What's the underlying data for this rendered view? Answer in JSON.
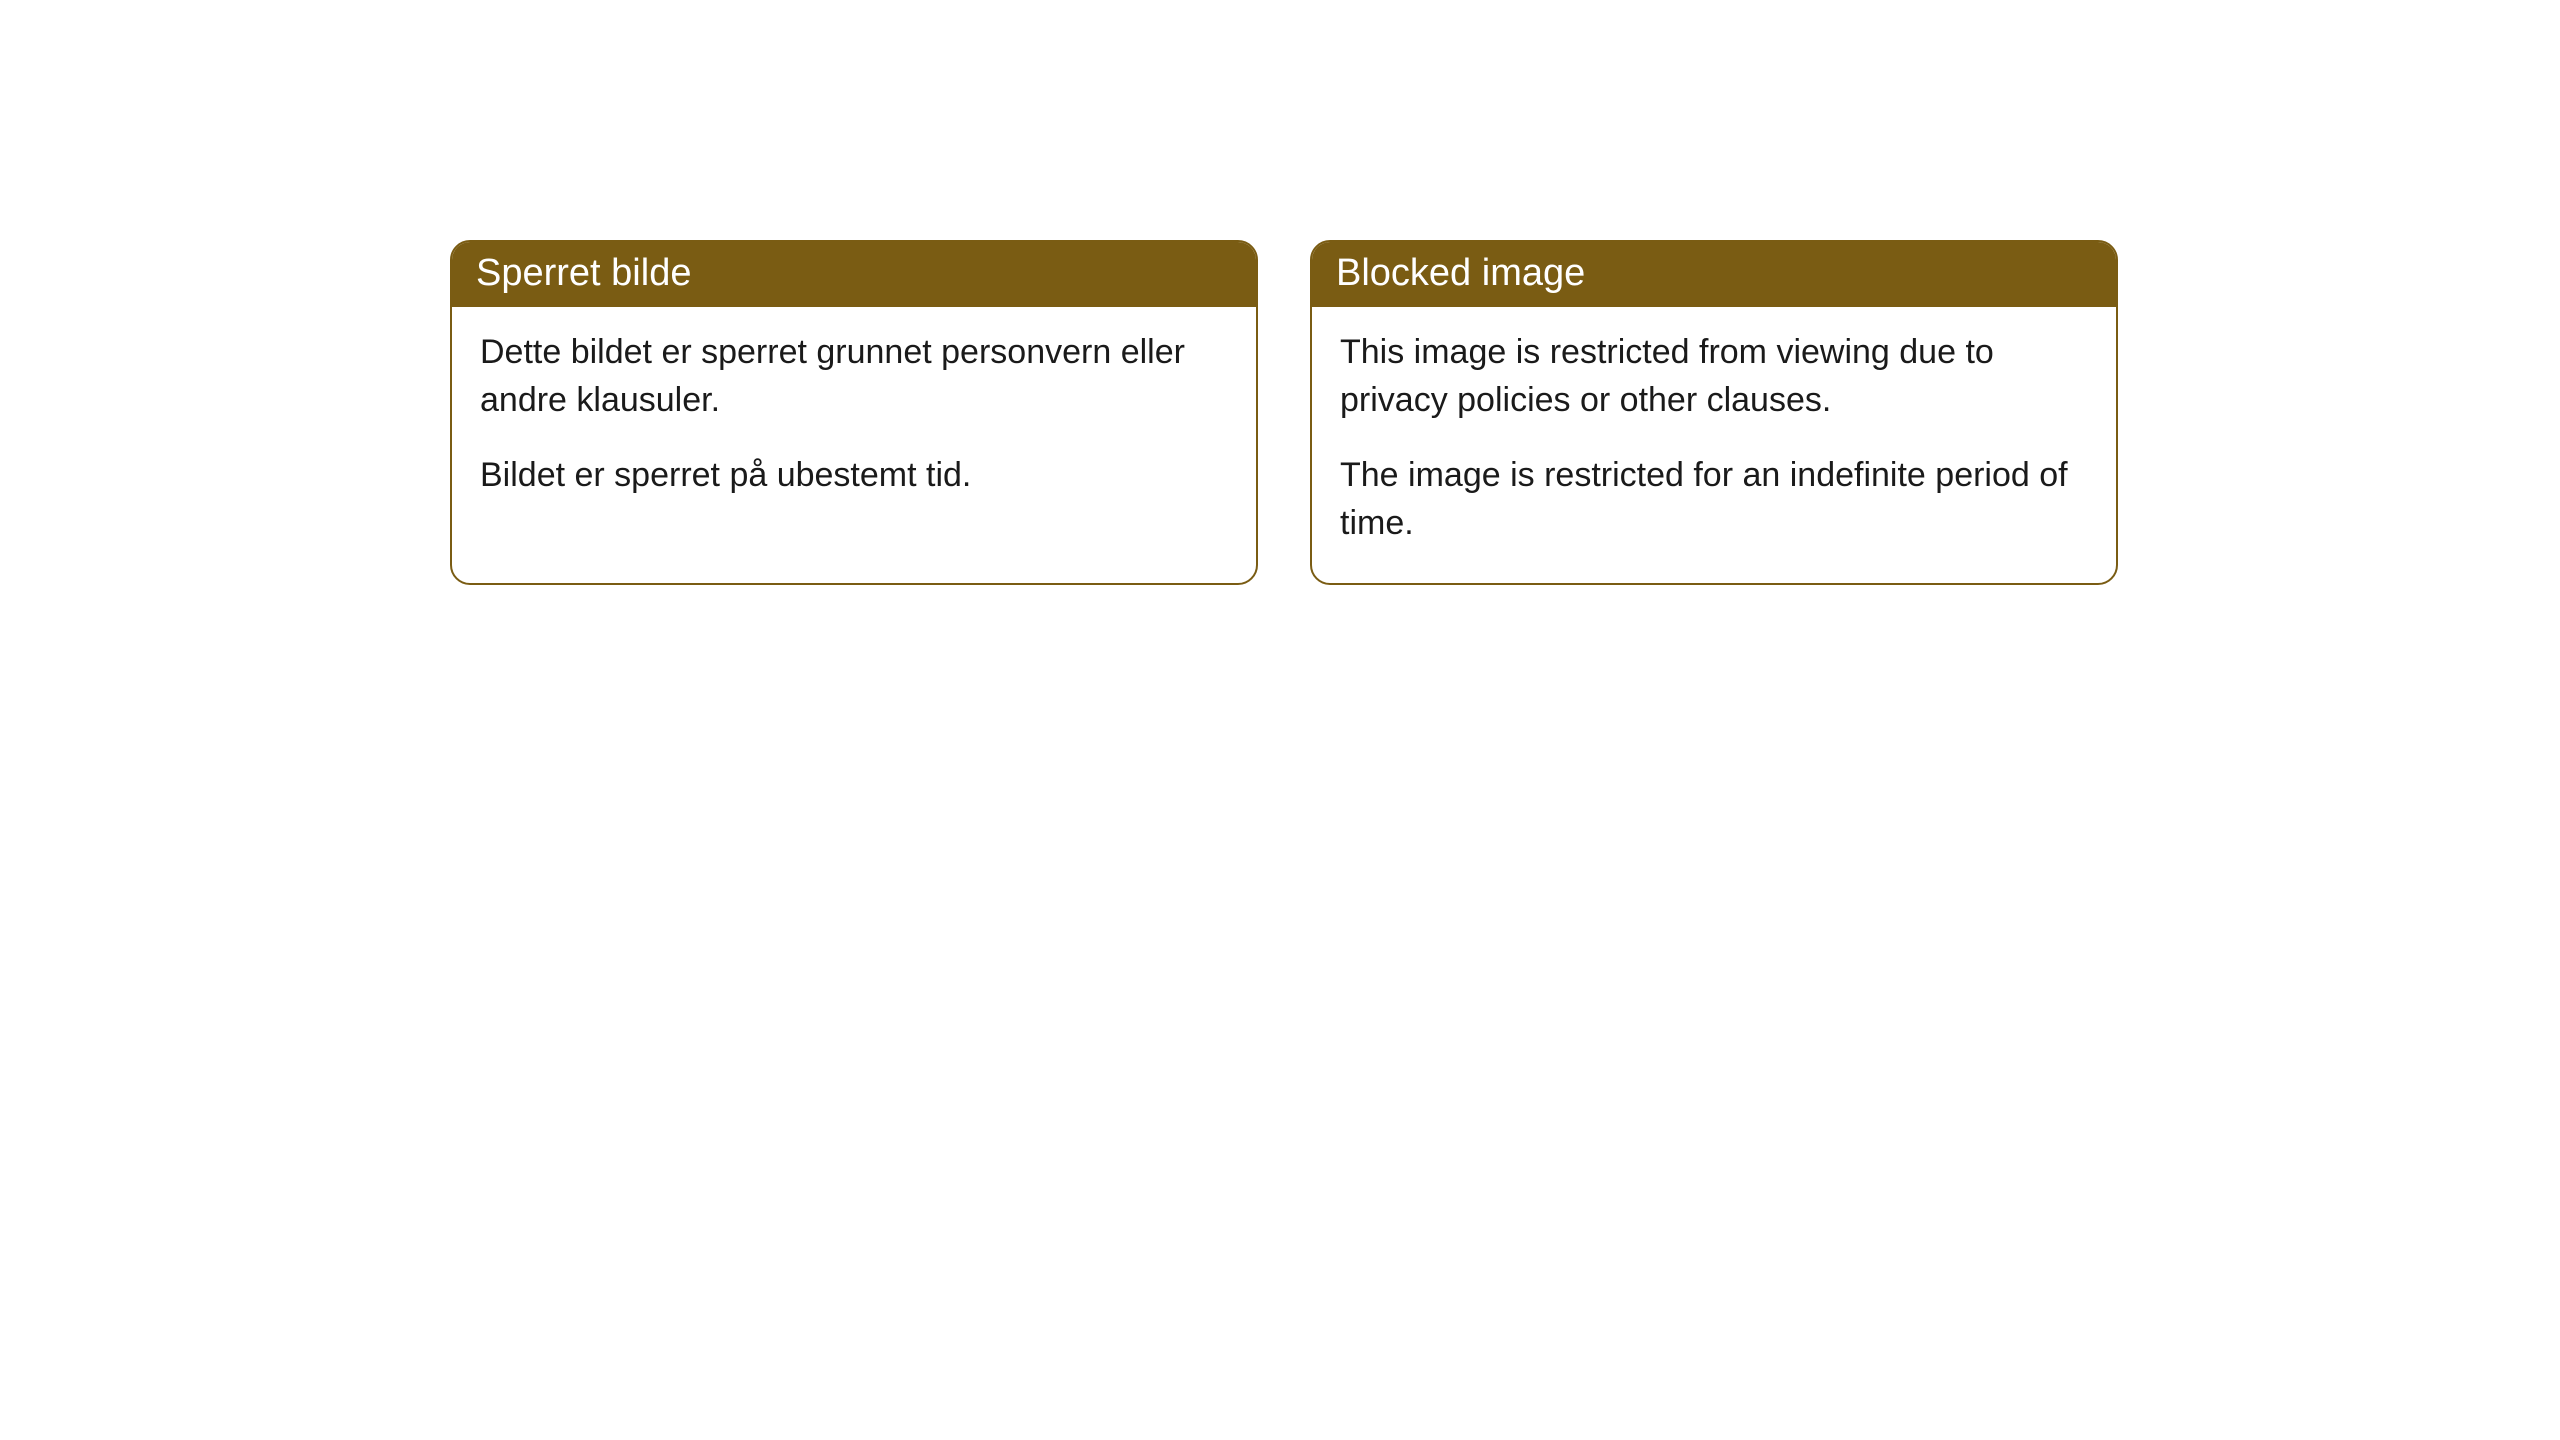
{
  "style": {
    "header_bg_color": "#7a5c13",
    "header_text_color": "#ffffff",
    "body_bg_color": "#ffffff",
    "body_text_color": "#1a1a1a",
    "border_color": "#7a5c13",
    "border_radius": "20px",
    "header_fontsize": "38px",
    "body_fontsize": "34px"
  },
  "cards": [
    {
      "title": "Sperret bilde",
      "para1": "Dette bildet er sperret grunnet personvern eller andre klausuler.",
      "para2": "Bildet er sperret på ubestemt tid."
    },
    {
      "title": "Blocked image",
      "para1": "This image is restricted from viewing due to privacy policies or other clauses.",
      "para2": "The image is restricted for an indefinite period of time."
    }
  ]
}
